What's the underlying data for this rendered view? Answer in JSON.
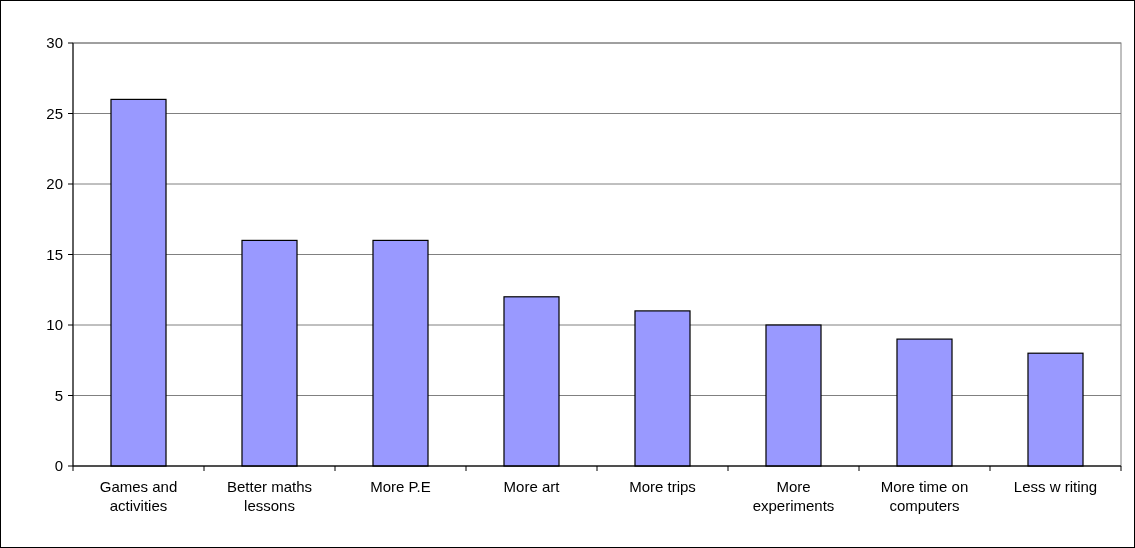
{
  "chart_data": {
    "type": "bar",
    "categories": [
      "Games and activities",
      "Better maths lessons",
      "More P.E",
      "More art",
      "More trips",
      "More experiments",
      "More time on computers",
      "Less w riting"
    ],
    "values": [
      26,
      16,
      16,
      12,
      11,
      10,
      9,
      8
    ],
    "color": "#9999ff",
    "ylim": [
      0,
      30
    ],
    "yticks": [
      0,
      5,
      10,
      15,
      20,
      25,
      30
    ],
    "grid": "y"
  }
}
